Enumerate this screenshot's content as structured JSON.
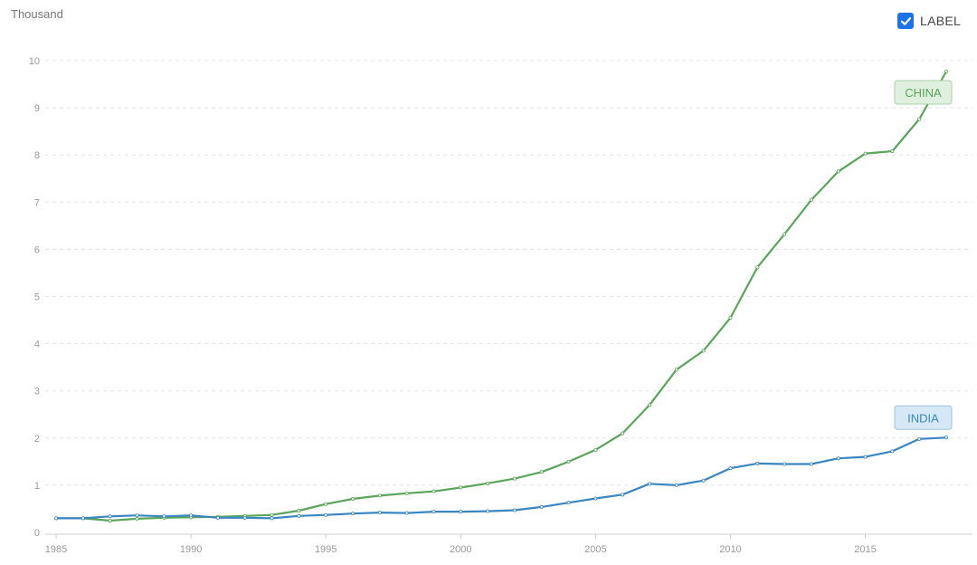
{
  "unit_label": "Thousand",
  "toggle": {
    "label": "LABEL",
    "checked": true
  },
  "chart_data": {
    "type": "line",
    "ylabel": "Thousand",
    "xlim": [
      1985,
      2018
    ],
    "ylim": [
      0,
      10
    ],
    "y_ticks": [
      0,
      1,
      2,
      3,
      4,
      5,
      6,
      7,
      8,
      9,
      10
    ],
    "x_ticks": [
      1985,
      1990,
      1995,
      2000,
      2005,
      2010,
      2015
    ],
    "grid": true,
    "x": [
      1985,
      1986,
      1987,
      1988,
      1989,
      1990,
      1991,
      1992,
      1993,
      1994,
      1995,
      1996,
      1997,
      1998,
      1999,
      2000,
      2001,
      2002,
      2003,
      2004,
      2005,
      2006,
      2007,
      2008,
      2009,
      2010,
      2011,
      2012,
      2013,
      2014,
      2015,
      2016,
      2017,
      2018
    ],
    "series": [
      {
        "name": "CHINA",
        "color": "#5aa55a",
        "label_bg": "#dff0df",
        "label_border": "#a9d2a9",
        "values": [
          0.3,
          0.3,
          0.25,
          0.29,
          0.31,
          0.32,
          0.33,
          0.35,
          0.37,
          0.46,
          0.6,
          0.71,
          0.78,
          0.83,
          0.87,
          0.95,
          1.04,
          1.14,
          1.28,
          1.5,
          1.75,
          2.1,
          2.7,
          3.45,
          3.85,
          4.55,
          5.62,
          6.32,
          7.05,
          7.65,
          8.03,
          8.08,
          8.76,
          9.77
        ]
      },
      {
        "name": "INDIA",
        "color": "#3a86c2",
        "label_bg": "#d6e8f6",
        "label_border": "#9cc3e3",
        "values": [
          0.3,
          0.3,
          0.34,
          0.36,
          0.34,
          0.36,
          0.31,
          0.31,
          0.3,
          0.35,
          0.37,
          0.4,
          0.42,
          0.41,
          0.44,
          0.44,
          0.45,
          0.47,
          0.54,
          0.63,
          0.72,
          0.8,
          1.03,
          1.0,
          1.1,
          1.36,
          1.46,
          1.45,
          1.45,
          1.57,
          1.6,
          1.72,
          1.98,
          2.01
        ]
      }
    ]
  }
}
